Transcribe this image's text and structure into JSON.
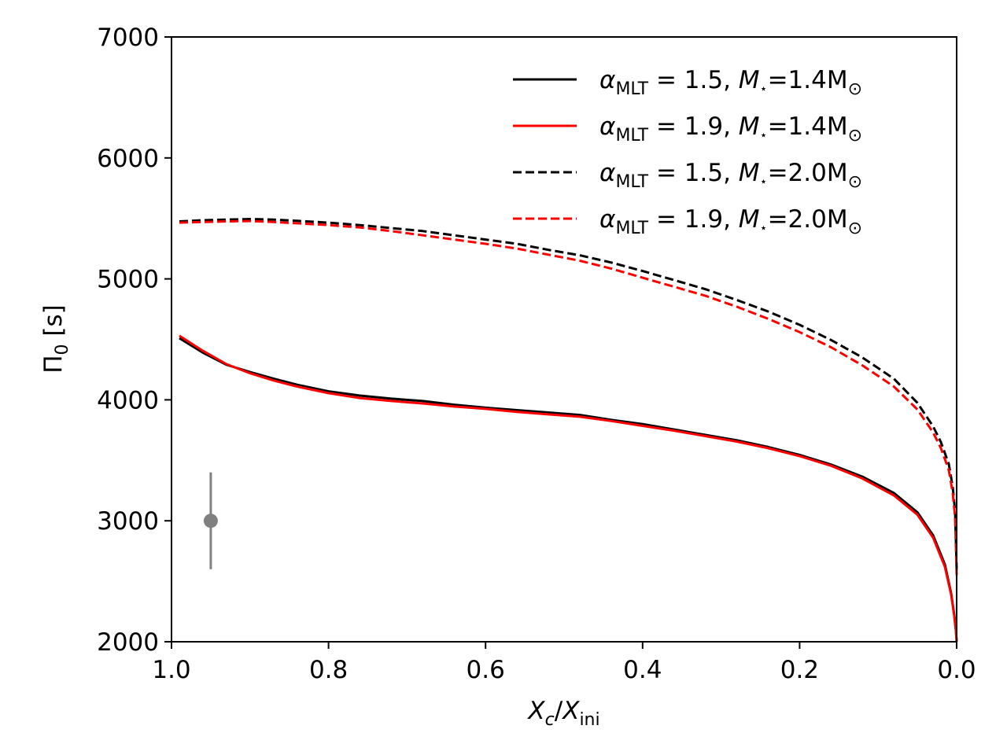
{
  "chart_data": {
    "type": "line",
    "title": "",
    "xlabel": "X_c/X_ini",
    "xlabel_parts": {
      "main": "X",
      "sub1": "c",
      "slash": "/",
      "main2": "X",
      "sub2": "ini"
    },
    "ylabel": "Π0 [s]",
    "ylabel_parts": {
      "main": "Π",
      "sub": "0",
      "unit": " [s]"
    },
    "xlim": [
      1.0,
      0.0
    ],
    "ylim": [
      2000,
      7000
    ],
    "x_ticks": [
      1.0,
      0.8,
      0.6,
      0.4,
      0.2,
      0.0
    ],
    "x_tick_labels": [
      "1.0",
      "0.8",
      "0.6",
      "0.4",
      "0.2",
      "0.0"
    ],
    "y_ticks": [
      2000,
      3000,
      4000,
      5000,
      6000,
      7000
    ],
    "y_tick_labels": [
      "2000",
      "3000",
      "4000",
      "5000",
      "6000",
      "7000"
    ],
    "grid": false,
    "legend_position": "top-right",
    "colors": {
      "black": "#000000",
      "red": "#ff0000",
      "gray": "#808080"
    },
    "series": [
      {
        "name": "alpha_MLT = 1.5, M* = 1.4 Msun",
        "legend": {
          "alpha_value": "1.5",
          "mass_value": "=1.4M"
        },
        "color": "#000000",
        "dash": "solid",
        "x": [
          0.99,
          0.96,
          0.93,
          0.9,
          0.87,
          0.84,
          0.8,
          0.76,
          0.72,
          0.68,
          0.64,
          0.6,
          0.56,
          0.52,
          0.48,
          0.44,
          0.4,
          0.36,
          0.32,
          0.28,
          0.24,
          0.2,
          0.16,
          0.12,
          0.08,
          0.05,
          0.03,
          0.015,
          0.007,
          0.003,
          0.001,
          0.0
        ],
        "y": [
          4510,
          4390,
          4290,
          4230,
          4175,
          4125,
          4070,
          4035,
          4010,
          3990,
          3960,
          3935,
          3915,
          3895,
          3875,
          3835,
          3800,
          3755,
          3710,
          3665,
          3610,
          3545,
          3465,
          3365,
          3230,
          3070,
          2880,
          2640,
          2400,
          2220,
          2100,
          2000
        ]
      },
      {
        "name": "alpha_MLT = 1.9, M* = 1.4 Msun",
        "legend": {
          "alpha_value": "1.9",
          "mass_value": "=1.4M"
        },
        "color": "#ff0000",
        "dash": "solid",
        "x": [
          0.99,
          0.96,
          0.93,
          0.9,
          0.87,
          0.84,
          0.8,
          0.76,
          0.72,
          0.68,
          0.64,
          0.6,
          0.56,
          0.52,
          0.48,
          0.44,
          0.4,
          0.36,
          0.32,
          0.28,
          0.24,
          0.2,
          0.16,
          0.12,
          0.08,
          0.05,
          0.03,
          0.015,
          0.007,
          0.003,
          0.001,
          0.0
        ],
        "y": [
          4530,
          4405,
          4295,
          4220,
          4160,
          4110,
          4055,
          4015,
          3990,
          3970,
          3945,
          3925,
          3900,
          3880,
          3860,
          3825,
          3785,
          3745,
          3700,
          3655,
          3600,
          3535,
          3455,
          3350,
          3210,
          3050,
          2860,
          2620,
          2390,
          2210,
          2090,
          2000
        ]
      },
      {
        "name": "alpha_MLT = 1.5, M* = 2.0 Msun",
        "legend": {
          "alpha_value": "1.5",
          "mass_value": "=2.0M"
        },
        "color": "#000000",
        "dash": "dashed",
        "x": [
          0.99,
          0.96,
          0.93,
          0.9,
          0.87,
          0.84,
          0.8,
          0.76,
          0.72,
          0.68,
          0.64,
          0.6,
          0.56,
          0.52,
          0.48,
          0.44,
          0.4,
          0.36,
          0.32,
          0.28,
          0.24,
          0.2,
          0.16,
          0.12,
          0.08,
          0.05,
          0.03,
          0.02,
          0.01,
          0.005,
          0.002,
          0.0
        ],
        "y": [
          5475,
          5485,
          5490,
          5495,
          5490,
          5480,
          5465,
          5445,
          5420,
          5395,
          5360,
          5325,
          5290,
          5240,
          5195,
          5135,
          5065,
          4990,
          4915,
          4825,
          4730,
          4620,
          4495,
          4350,
          4175,
          3975,
          3780,
          3650,
          3470,
          3280,
          3080,
          2600
        ]
      },
      {
        "name": "alpha_MLT = 1.9, M* = 2.0 Msun",
        "legend": {
          "alpha_value": "1.9",
          "mass_value": "=2.0M"
        },
        "color": "#ff0000",
        "dash": "dashed",
        "x": [
          0.99,
          0.96,
          0.93,
          0.9,
          0.87,
          0.84,
          0.8,
          0.76,
          0.72,
          0.68,
          0.64,
          0.6,
          0.56,
          0.52,
          0.48,
          0.44,
          0.4,
          0.36,
          0.32,
          0.28,
          0.24,
          0.2,
          0.16,
          0.12,
          0.08,
          0.05,
          0.03,
          0.02,
          0.01,
          0.005,
          0.002,
          0.0
        ],
        "y": [
          5465,
          5470,
          5475,
          5478,
          5470,
          5460,
          5445,
          5425,
          5395,
          5360,
          5325,
          5290,
          5250,
          5200,
          5150,
          5085,
          5010,
          4935,
          4860,
          4770,
          4670,
          4560,
          4435,
          4285,
          4110,
          3920,
          3730,
          3600,
          3420,
          3230,
          3030,
          2550
        ]
      }
    ],
    "error_point": {
      "x": 0.95,
      "y": 3000,
      "yerr_low": 2600,
      "yerr_high": 3400,
      "color": "#808080"
    },
    "legend_labels": {
      "alpha_symbol": "α",
      "alpha_sub": "MLT",
      "mass_symbol": "M",
      "mass_sub": "⋆",
      "sun_symbol": "⊙"
    }
  }
}
